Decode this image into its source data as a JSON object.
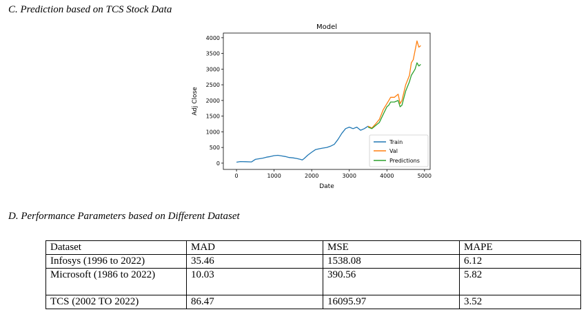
{
  "section_c": {
    "heading": "C.   Prediction based on TCS Stock Data"
  },
  "section_d": {
    "heading": "D.   Performance Parameters based on Different Dataset"
  },
  "chart_data": {
    "type": "line",
    "title": "Model",
    "xlabel": "Date",
    "ylabel": "Adj Close",
    "xlim": [
      -350,
      5150
    ],
    "ylim": [
      -200,
      4150
    ],
    "xticks": [
      0,
      1000,
      2000,
      3000,
      4000,
      5000
    ],
    "yticks": [
      0,
      500,
      1000,
      1500,
      2000,
      2500,
      3000,
      3500,
      4000
    ],
    "legend_position": "bottom-right",
    "grid": false,
    "series": [
      {
        "name": "Train",
        "color": "#1f77b4",
        "x": [
          0,
          100,
          250,
          400,
          500,
          700,
          800,
          900,
          1000,
          1100,
          1200,
          1300,
          1400,
          1500,
          1600,
          1700,
          1750,
          1800,
          1900,
          2000,
          2100,
          2200,
          2300,
          2400,
          2500,
          2600,
          2700,
          2800,
          2900,
          3000,
          3100,
          3200,
          3300,
          3400,
          3500
        ],
        "y": [
          30,
          50,
          45,
          40,
          120,
          160,
          190,
          210,
          240,
          250,
          230,
          210,
          180,
          170,
          150,
          120,
          100,
          150,
          260,
          350,
          430,
          460,
          480,
          500,
          540,
          600,
          760,
          950,
          1100,
          1150,
          1100,
          1150,
          1050,
          1100,
          1180
        ]
      },
      {
        "name": "Val",
        "color": "#ff7f0e",
        "x": [
          3500,
          3600,
          3700,
          3800,
          3900,
          4000,
          4050,
          4100,
          4200,
          4300,
          4350,
          4400,
          4500,
          4600,
          4650,
          4700,
          4750,
          4800,
          4850,
          4900
        ],
        "y": [
          1180,
          1120,
          1250,
          1400,
          1700,
          1900,
          2000,
          2100,
          2100,
          2200,
          1900,
          2000,
          2500,
          2800,
          3200,
          3300,
          3600,
          3900,
          3700,
          3750
        ]
      },
      {
        "name": "Predictions",
        "color": "#2ca02c",
        "x": [
          3500,
          3600,
          3700,
          3800,
          3900,
          4000,
          4050,
          4100,
          4200,
          4300,
          4350,
          4400,
          4500,
          4600,
          4650,
          4700,
          4750,
          4800,
          4850,
          4900
        ],
        "y": [
          1150,
          1100,
          1200,
          1300,
          1550,
          1800,
          1850,
          1950,
          1950,
          2000,
          1800,
          1850,
          2300,
          2600,
          2800,
          2900,
          3000,
          3200,
          3100,
          3150
        ]
      }
    ]
  },
  "table": {
    "headers": [
      "Dataset",
      "MAD",
      "MSE",
      "MAPE"
    ],
    "rows": [
      [
        "Infosys (1996 to 2022)",
        "35.46",
        "1538.08",
        "6.12"
      ],
      [
        "Microsoft (1986 to 2022)",
        "10.03",
        "390.56",
        "5.82"
      ],
      [
        "TCS (2002 TO 2022)",
        "86.47",
        "16095.97",
        "3.52"
      ]
    ]
  }
}
